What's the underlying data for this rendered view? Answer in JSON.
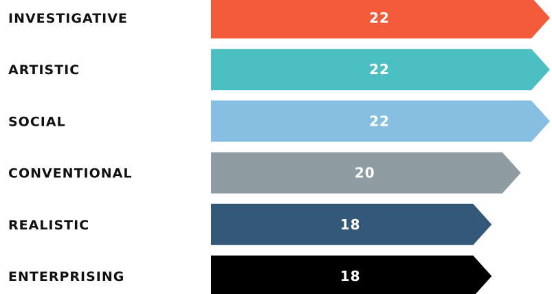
{
  "chart_data": {
    "type": "bar",
    "orientation": "horizontal",
    "categories": [
      "INVESTIGATIVE",
      "ARTISTIC",
      "SOCIAL",
      "CONVENTIONAL",
      "REALISTIC",
      "ENTERPRISING"
    ],
    "values": [
      22,
      22,
      22,
      20,
      18,
      18
    ],
    "value_labels": [
      "22",
      "22",
      "22",
      "20",
      "18",
      "18"
    ],
    "colors": [
      "#f25c3b",
      "#4bbfc2",
      "#87bfe2",
      "#909ca4",
      "#335878",
      "#000000"
    ],
    "title": "",
    "xlabel": "",
    "ylabel": "",
    "xlim": [
      0,
      22
    ],
    "grid": false,
    "bar_shape": "arrow"
  }
}
